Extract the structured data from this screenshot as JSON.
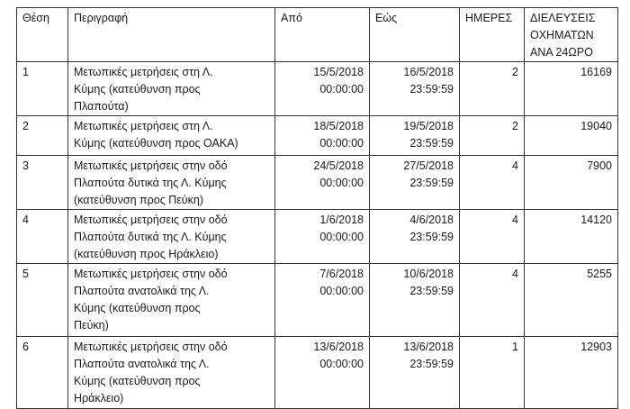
{
  "headers": [
    "Θέση",
    "Περιγραφή",
    "Από",
    "Εώς",
    "ΗΜΕΡΕΣ",
    "ΔΙΕΛΕΥΣΕΙΣ\nΟΧΗΜΑΤΩΝ\nΑΝΑ 24ΩΡΟ"
  ],
  "rows": [
    {
      "pos": "1",
      "desc": "Μετωπικές μετρήσεις στη Λ.\nΚύμης (κατεύθυνση προς\nΠλαπούτα)",
      "from": "15/5/2018\n00:00:00",
      "to": "16/5/2018\n23:59:59",
      "days": "2",
      "vehicles": "16169"
    },
    {
      "pos": "2",
      "desc": "Μετωπικές μετρήσεις στη Λ.\nΚύμης (κατεύθυνση προς ΟΑΚΑ)",
      "from": "18/5/2018\n00:00:00",
      "to": "19/5/2018\n23:59:59",
      "days": "2",
      "vehicles": "19040"
    },
    {
      "pos": "3",
      "desc": "Μετωπικές μετρήσεις στην οδό\nΠλαπούτα δυτικά της Λ. Κύμης\n(κατεύθυνση προς Πεύκη)",
      "from": "24/5/2018\n00:00:00",
      "to": "27/5/2018\n23:59:59",
      "days": "4",
      "vehicles": "7900"
    },
    {
      "pos": "4",
      "desc": "Μετωπικές μετρήσεις στην οδό\nΠλαπούτα δυτικά της Λ. Κύμης\n(κατεύθυνση προς Ηράκλειο)",
      "from": "1/6/2018\n00:00:00",
      "to": "4/6/2018\n23:59:59",
      "days": "4",
      "vehicles": "14120"
    },
    {
      "pos": "5",
      "desc": "Μετωπικές μετρήσεις στην οδό\nΠλαπούτα ανατολικά της Λ.\nΚύμης (κατεύθυνση προς\nΠεύκη)",
      "from": "7/6/2018\n00:00:00",
      "to": "10/6/2018\n23:59:59",
      "days": "4",
      "vehicles": "5255"
    },
    {
      "pos": "6",
      "desc": "Μετωπικές μετρήσεις στην οδό\nΠλαπούτα ανατολικά της Λ.\nΚύμης (κατεύθυνση προς\nΗράκλειο)",
      "from": "13/6/2018\n00:00:00",
      "to": "13/6/2018\n23:59:59",
      "days": "1",
      "vehicles": "12903"
    }
  ]
}
